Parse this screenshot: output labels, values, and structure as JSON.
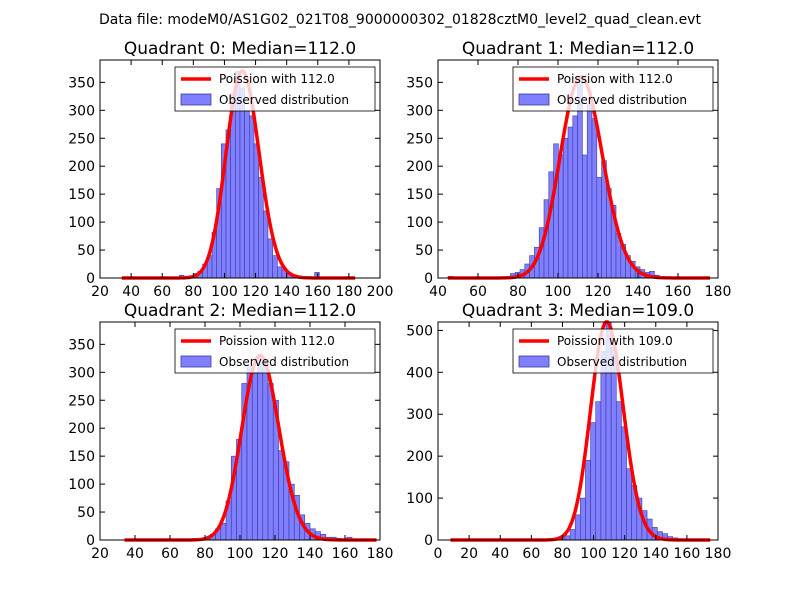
{
  "figure_title": "Data file: modeM0/AS1G02_021T08_9000000302_01828cztM0_level2_quad_clean.evt",
  "colors": {
    "poisson_line": "#ff0000",
    "histogram_fill": "#7f7fff",
    "histogram_edge": "#3a3aa0"
  },
  "chart_data": [
    {
      "type": "bar",
      "title": "Quadrant 0: Median=112.0",
      "xlim": [
        20,
        200
      ],
      "ylim": [
        0,
        390
      ],
      "xticks": [
        20,
        40,
        60,
        80,
        100,
        120,
        140,
        160,
        180,
        200
      ],
      "yticks": [
        0,
        50,
        100,
        150,
        200,
        250,
        300,
        350
      ],
      "bin_width": 3,
      "bins_x": [
        68,
        71,
        74,
        77,
        80,
        83,
        86,
        89,
        92,
        95,
        98,
        101,
        104,
        107,
        110,
        113,
        116,
        119,
        122,
        125,
        128,
        131,
        134,
        137,
        140,
        143,
        146,
        149,
        152,
        155,
        158,
        161
      ],
      "counts": [
        2,
        5,
        3,
        4,
        8,
        12,
        25,
        40,
        82,
        160,
        240,
        265,
        330,
        370,
        340,
        300,
        290,
        240,
        180,
        120,
        70,
        40,
        20,
        15,
        8,
        5,
        3,
        2,
        1,
        0,
        10,
        1
      ],
      "poisson_lambda": 112.0,
      "poisson_x_range": [
        34,
        184
      ],
      "legend": [
        "Poission with 112.0",
        "Observed distribution"
      ]
    },
    {
      "type": "bar",
      "title": "Quadrant 1: Median=112.0",
      "xlim": [
        40,
        180
      ],
      "ylim": [
        0,
        390
      ],
      "xticks": [
        40,
        60,
        80,
        100,
        120,
        140,
        160,
        180
      ],
      "yticks": [
        0,
        50,
        100,
        150,
        200,
        250,
        300,
        350
      ],
      "bin_width": 2.4,
      "bins_x": [
        45,
        76.2,
        78.6,
        81,
        83.4,
        85.8,
        88.2,
        90.6,
        93,
        95.4,
        97.8,
        100.2,
        102.6,
        105,
        107.4,
        109.8,
        112.2,
        114.6,
        117,
        119.4,
        121.8,
        124.2,
        126.6,
        129,
        131.4,
        133.8,
        136.2,
        138.6,
        141,
        143.4,
        145.8,
        148.2,
        150.6,
        153
      ],
      "counts": [
        3,
        8,
        10,
        15,
        25,
        40,
        55,
        90,
        140,
        190,
        240,
        220,
        250,
        270,
        290,
        360,
        220,
        310,
        285,
        180,
        210,
        160,
        130,
        80,
        60,
        40,
        30,
        20,
        15,
        10,
        12,
        5,
        3,
        2
      ],
      "poisson_lambda": 112.0,
      "poisson_x_range": [
        45,
        176
      ],
      "legend": [
        "Poission with 112.0",
        "Observed distribution"
      ]
    },
    {
      "type": "bar",
      "title": "Quadrant 2: Median=112.0",
      "xlim": [
        20,
        180
      ],
      "ylim": [
        0,
        390
      ],
      "xticks": [
        20,
        40,
        60,
        80,
        100,
        120,
        140,
        160,
        180
      ],
      "yticks": [
        0,
        50,
        100,
        150,
        200,
        250,
        300,
        350
      ],
      "bin_width": 3,
      "bins_x": [
        65,
        73,
        80,
        83,
        86,
        89,
        92,
        95,
        98,
        101,
        104,
        107,
        110,
        113,
        116,
        119,
        122,
        125,
        128,
        131,
        134,
        137,
        140,
        143,
        146,
        149,
        152,
        155,
        158,
        161,
        164
      ],
      "counts": [
        2,
        3,
        5,
        10,
        20,
        30,
        70,
        150,
        180,
        280,
        310,
        300,
        330,
        320,
        280,
        250,
        160,
        140,
        100,
        80,
        45,
        30,
        20,
        15,
        10,
        5,
        5,
        3,
        2,
        5,
        2
      ],
      "poisson_lambda": 112.0,
      "poisson_x_range": [
        34,
        178
      ],
      "legend": [
        "Poission with 112.0",
        "Observed distribution"
      ]
    },
    {
      "type": "bar",
      "title": "Quadrant 3: Median=109.0",
      "xlim": [
        0,
        180
      ],
      "ylim": [
        0,
        520
      ],
      "xticks": [
        0,
        20,
        40,
        60,
        80,
        100,
        120,
        140,
        160,
        180
      ],
      "yticks": [
        0,
        100,
        200,
        300,
        400,
        500
      ],
      "bin_width": 3.3,
      "bins_x": [
        75,
        78.3,
        81.6,
        84.9,
        88.2,
        91.5,
        94.8,
        98.1,
        101.4,
        104.7,
        108,
        111.3,
        114.6,
        117.9,
        121.2,
        124.5,
        127.8,
        131.1,
        134.4,
        137.7,
        141,
        144.3,
        147.6,
        150.9,
        154.2,
        157.5,
        160.8,
        164.1
      ],
      "counts": [
        2,
        5,
        10,
        25,
        60,
        100,
        190,
        280,
        330,
        450,
        520,
        460,
        330,
        270,
        170,
        130,
        100,
        70,
        50,
        30,
        20,
        15,
        8,
        5,
        3,
        2,
        1,
        1
      ],
      "poisson_lambda": 109.0,
      "poisson_x_range": [
        8,
        175
      ],
      "legend": [
        "Poission with 109.0",
        "Observed distribution"
      ]
    }
  ]
}
